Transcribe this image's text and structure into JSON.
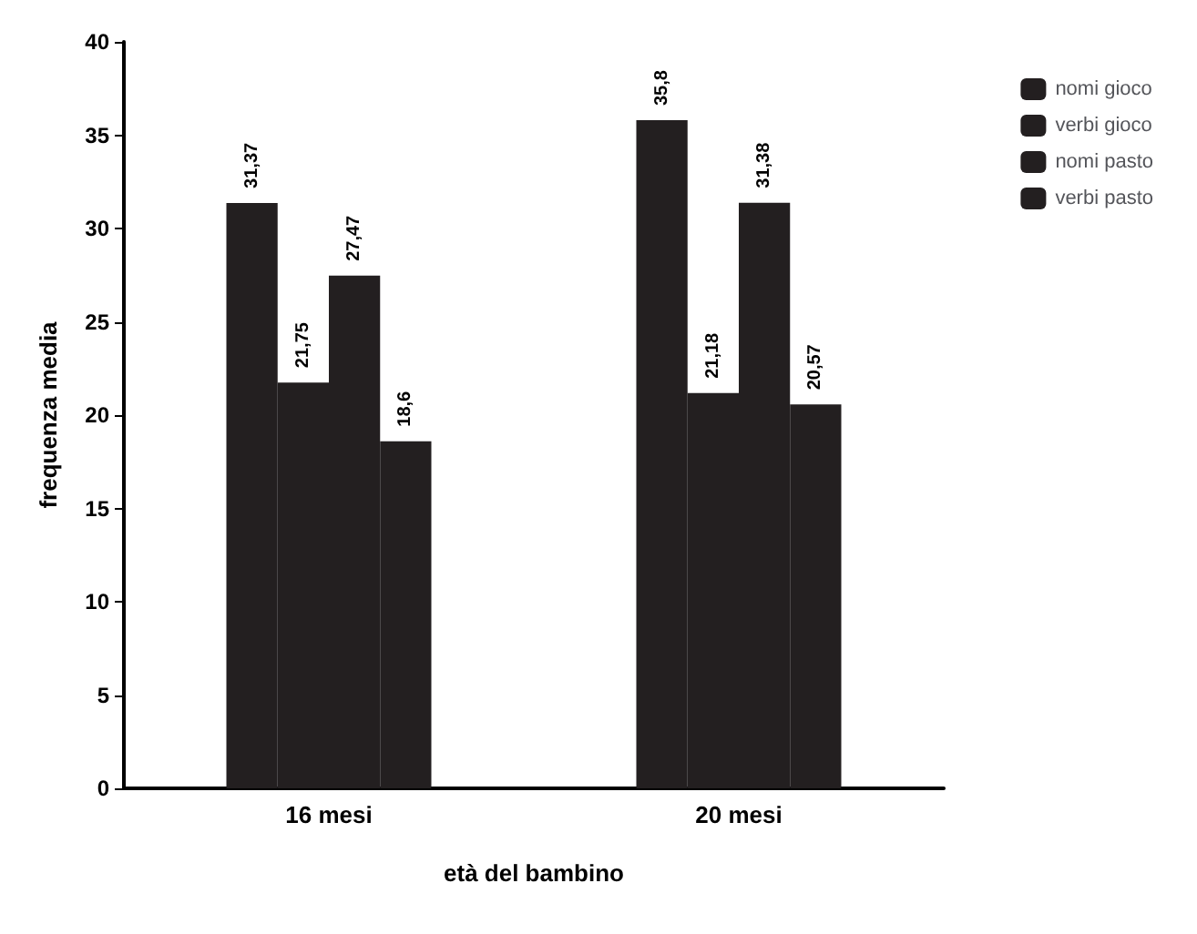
{
  "chart_data": {
    "type": "bar",
    "xlabel": "età del bambino",
    "ylabel": "frequenza media",
    "categories": [
      "16 mesi",
      "20 mesi"
    ],
    "series": [
      {
        "name": "nomi gioco",
        "color": "#231f20",
        "values": [
          31.37,
          35.8
        ],
        "value_labels": [
          "31,37",
          "35,8"
        ]
      },
      {
        "name": "verbi gioco",
        "color": "#231f20",
        "values": [
          21.75,
          21.18
        ],
        "value_labels": [
          "21,75",
          "21,18"
        ]
      },
      {
        "name": "nomi pasto",
        "color": "#231f20",
        "values": [
          27.47,
          31.38
        ],
        "value_labels": [
          "27,47",
          "31,38"
        ]
      },
      {
        "name": "verbi pasto",
        "color": "#231f20",
        "values": [
          18.6,
          20.57
        ],
        "value_labels": [
          "18,6",
          "20,57"
        ]
      }
    ],
    "ylim": [
      0,
      40
    ],
    "yticks": [
      0,
      5,
      10,
      15,
      20,
      25,
      30,
      35,
      40
    ],
    "grid": false,
    "legend": "top right"
  }
}
